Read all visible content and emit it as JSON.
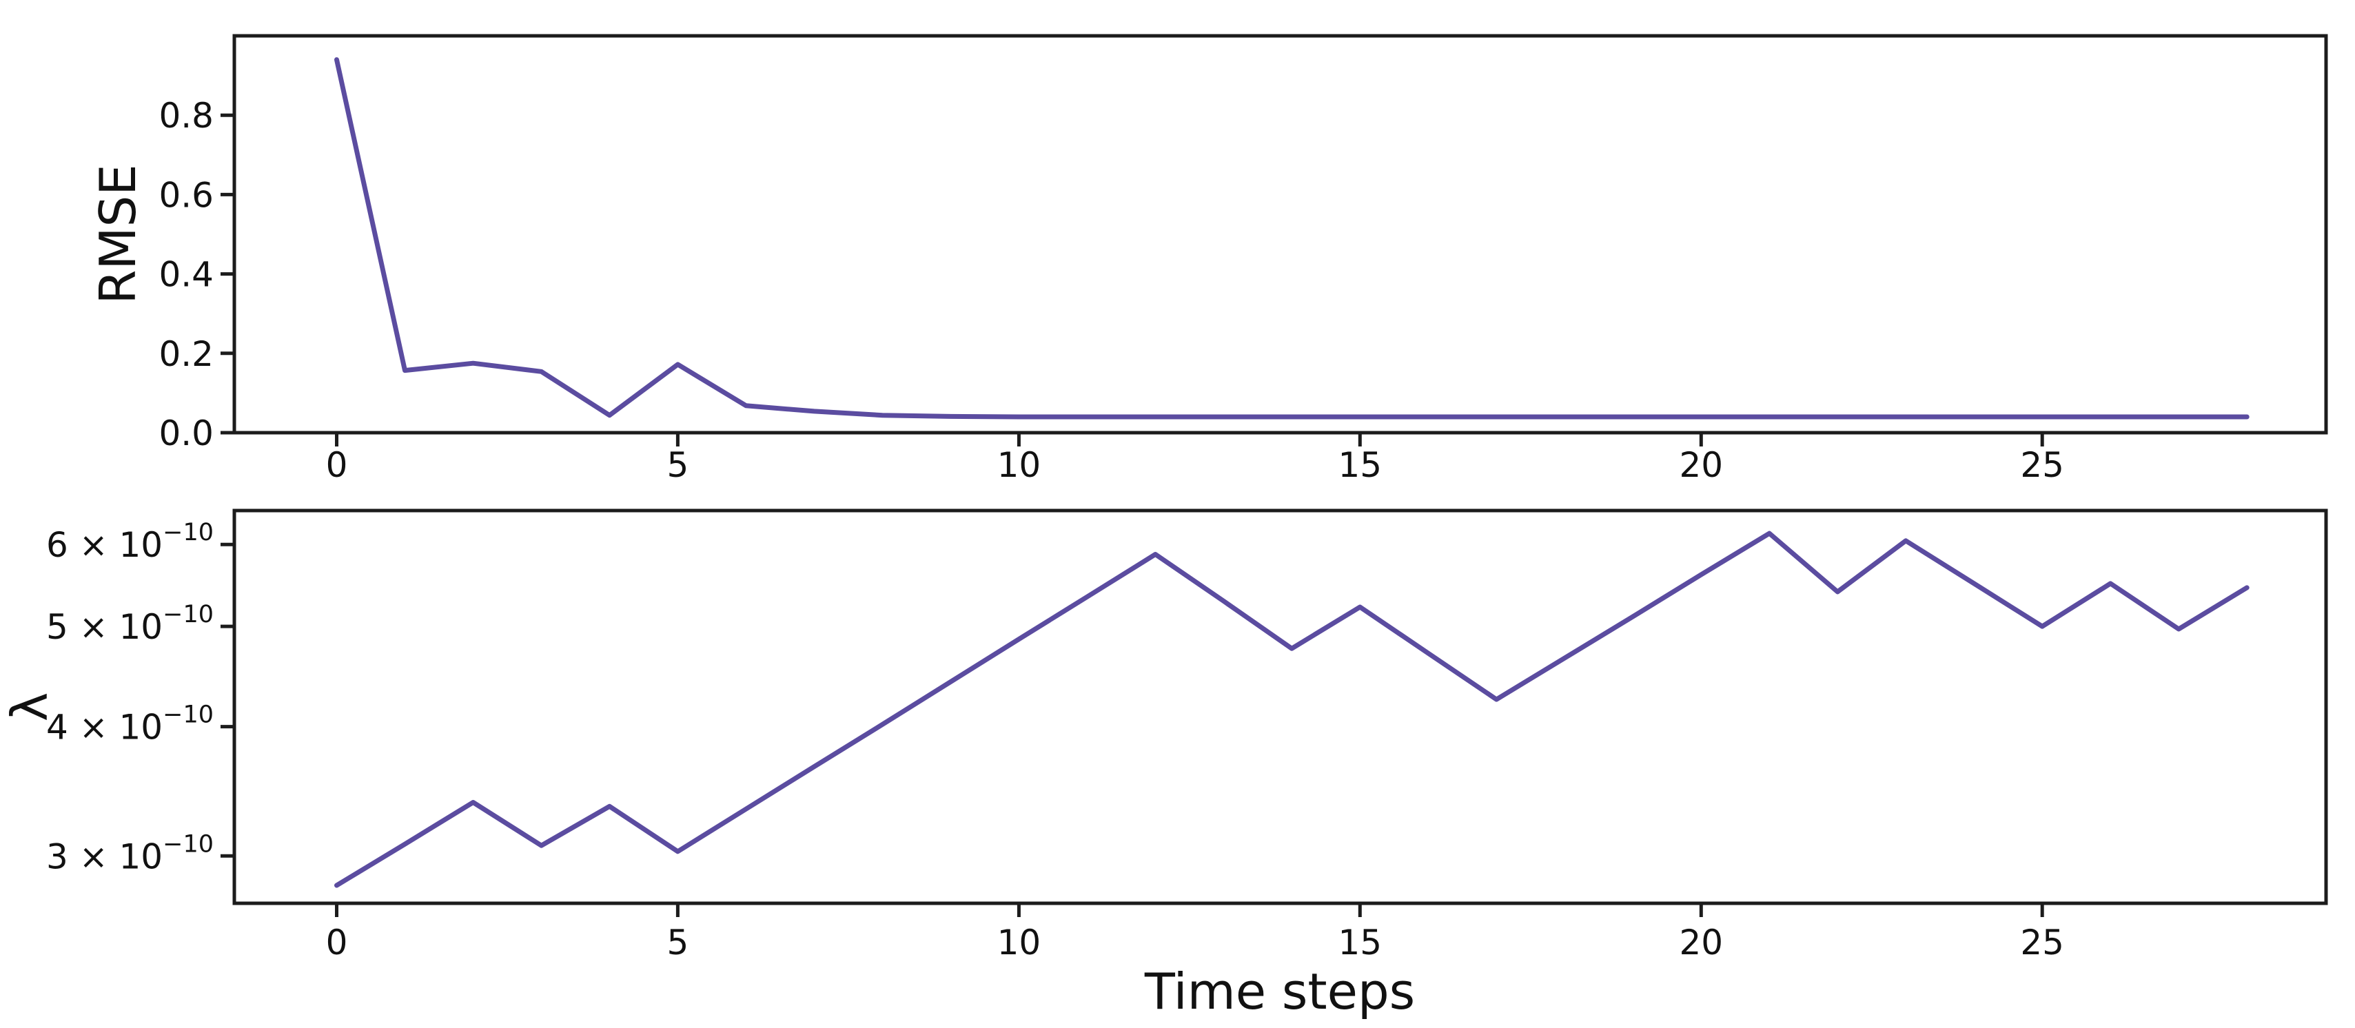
{
  "figure": {
    "background": "#ffffff",
    "line_color": "#5b4ca0",
    "axis_color": "#1c1c1c"
  },
  "chart_data": [
    {
      "name": "rmse-vs-time-steps",
      "type": "line",
      "title": "",
      "xlabel": "",
      "ylabel": "RMSE",
      "yscale": "linear",
      "grid": false,
      "legend": null,
      "xlim": [
        -1.5,
        29.16
      ],
      "ylim": [
        0,
        1.0
      ],
      "x": [
        0,
        1,
        2,
        3,
        4,
        5,
        6,
        7,
        8,
        9,
        10,
        11,
        12,
        13,
        14,
        15,
        16,
        17,
        18,
        19,
        20,
        21,
        22,
        23,
        24,
        25,
        26,
        27,
        28
      ],
      "values": [
        0.94,
        0.157,
        0.175,
        0.154,
        0.044,
        0.172,
        0.068,
        0.054,
        0.044,
        0.041,
        0.04,
        0.04,
        0.04,
        0.04,
        0.04,
        0.04,
        0.04,
        0.04,
        0.04,
        0.04,
        0.04,
        0.04,
        0.04,
        0.04,
        0.04,
        0.04,
        0.04,
        0.04,
        0.04
      ],
      "xticks": {
        "values": [
          0,
          5,
          10,
          15,
          20,
          25
        ],
        "labels": [
          "0",
          "5",
          "10",
          "15",
          "20",
          "25"
        ]
      },
      "yticks": {
        "values": [
          0.0,
          0.2,
          0.4,
          0.6,
          0.8
        ],
        "labels": [
          "0.0",
          "0.2",
          "0.4",
          "0.6",
          "0.8"
        ]
      }
    },
    {
      "name": "lambda-vs-time-steps",
      "type": "line",
      "title": "",
      "xlabel": "Time steps",
      "ylabel": "λ",
      "yscale": "log",
      "grid": false,
      "legend": null,
      "xlim": [
        -1.5,
        29.16
      ],
      "ylim": [
        2.7e-10,
        6.47e-10
      ],
      "x": [
        0,
        1,
        2,
        3,
        4,
        5,
        6,
        7,
        8,
        9,
        10,
        11,
        12,
        13,
        14,
        15,
        16,
        17,
        18,
        19,
        20,
        21,
        22,
        23,
        24,
        25,
        26,
        27,
        28
      ],
      "values": [
        2.81e-10,
        3.08e-10,
        3.38e-10,
        3.07e-10,
        3.35e-10,
        3.03e-10,
        3.33e-10,
        3.66e-10,
        4.02e-10,
        4.42e-10,
        4.86e-10,
        5.34e-10,
        5.87e-10,
        5.29e-10,
        4.76e-10,
        5.22e-10,
        4.71e-10,
        4.25e-10,
        4.66e-10,
        5.11e-10,
        5.61e-10,
        6.15e-10,
        5.4e-10,
        6.05e-10,
        5.5e-10,
        5e-10,
        5.5e-10,
        4.97e-10,
        5.45e-10
      ],
      "xticks": {
        "values": [
          0,
          5,
          10,
          15,
          20,
          25
        ],
        "labels": [
          "0",
          "5",
          "10",
          "15",
          "20",
          "25"
        ]
      },
      "yticks": {
        "values": [
          3e-10,
          4e-10,
          5e-10,
          6e-10
        ],
        "labels": [
          {
            "prefix": "3 × 10",
            "sup": "−10"
          },
          {
            "prefix": "4 × 10",
            "sup": "−10"
          },
          {
            "prefix": "5 × 10",
            "sup": "−10"
          },
          {
            "prefix": "6 × 10",
            "sup": "−10"
          }
        ]
      }
    }
  ]
}
